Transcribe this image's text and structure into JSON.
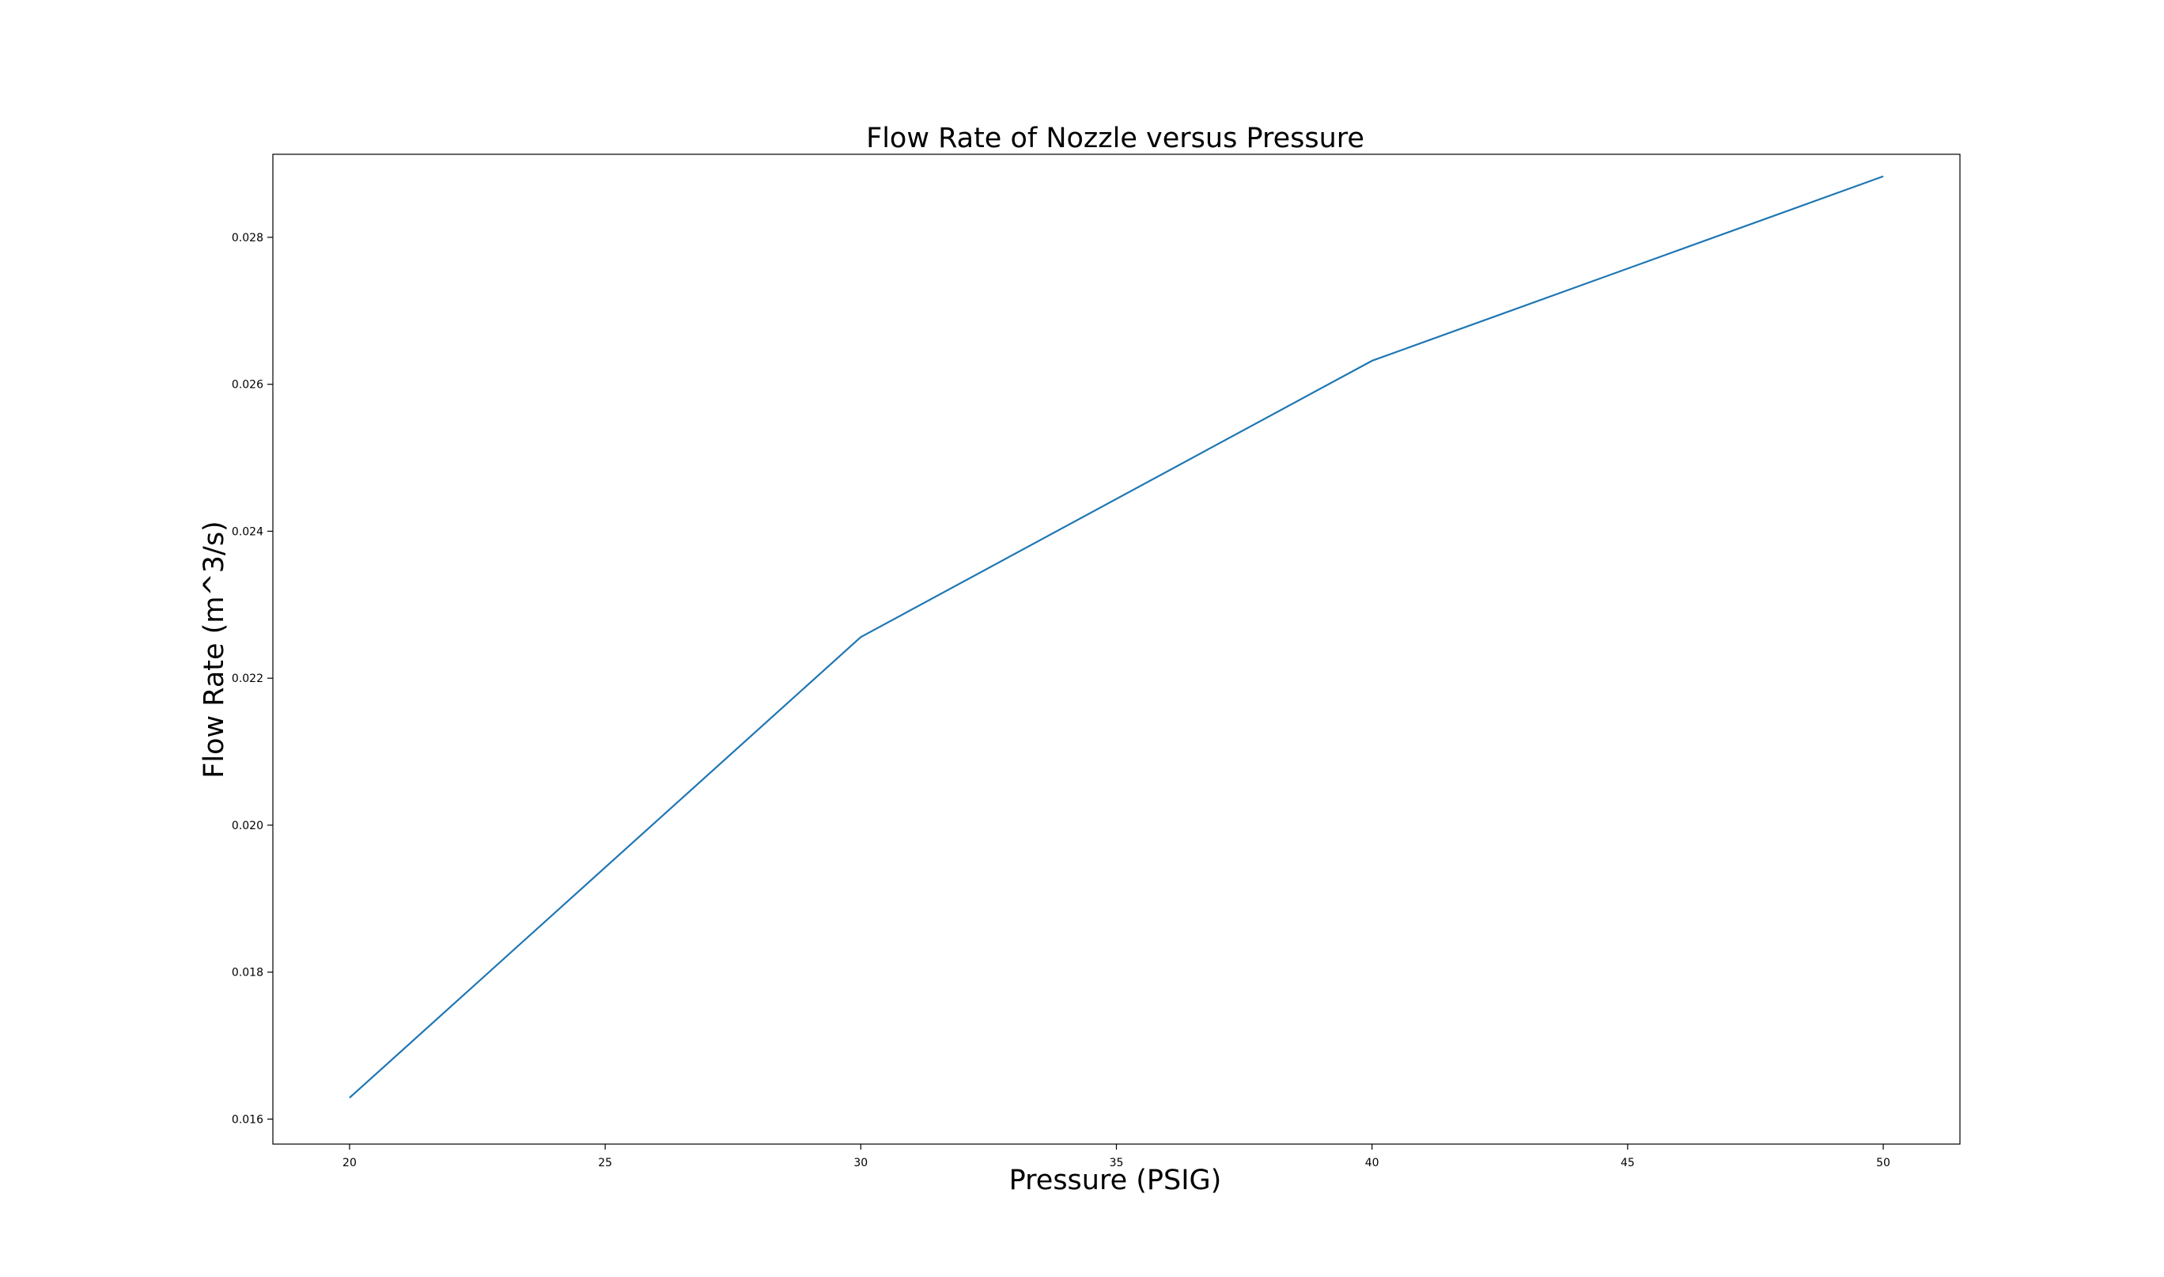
{
  "chart_data": {
    "type": "line",
    "title": "Flow Rate of Nozzle versus Pressure",
    "xlabel": "Pressure (PSIG)",
    "ylabel": "Flow Rate (m^3/s)",
    "xlim": [
      18.5,
      51.5
    ],
    "ylim": [
      0.01566,
      0.02913
    ],
    "x_ticks": [
      20,
      25,
      30,
      35,
      40,
      45,
      50
    ],
    "y_ticks": [
      0.016,
      0.018,
      0.02,
      0.022,
      0.024,
      0.026,
      0.028
    ],
    "x_tick_labels": [
      "20",
      "25",
      "30",
      "35",
      "40",
      "45",
      "50"
    ],
    "y_tick_labels": [
      "0.016",
      "0.018",
      "0.020",
      "0.022",
      "0.024",
      "0.026",
      "0.028"
    ],
    "grid": false,
    "legend": "none",
    "series": [
      {
        "color": "#1f77b4",
        "x": [
          20,
          30,
          40,
          50
        ],
        "y": [
          0.01629,
          0.02256,
          0.02632,
          0.02883
        ]
      }
    ]
  }
}
